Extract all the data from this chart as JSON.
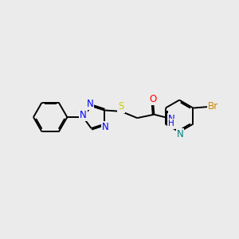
{
  "background_color": "#ebebeb",
  "colors": {
    "N": "#0000ff",
    "O": "#ff0000",
    "S": "#cccc00",
    "Br": "#cc8800",
    "C": "#000000",
    "N_pyridine": "#008080"
  },
  "lw": 1.4,
  "fs": 8.5,
  "dbo": 0.055
}
